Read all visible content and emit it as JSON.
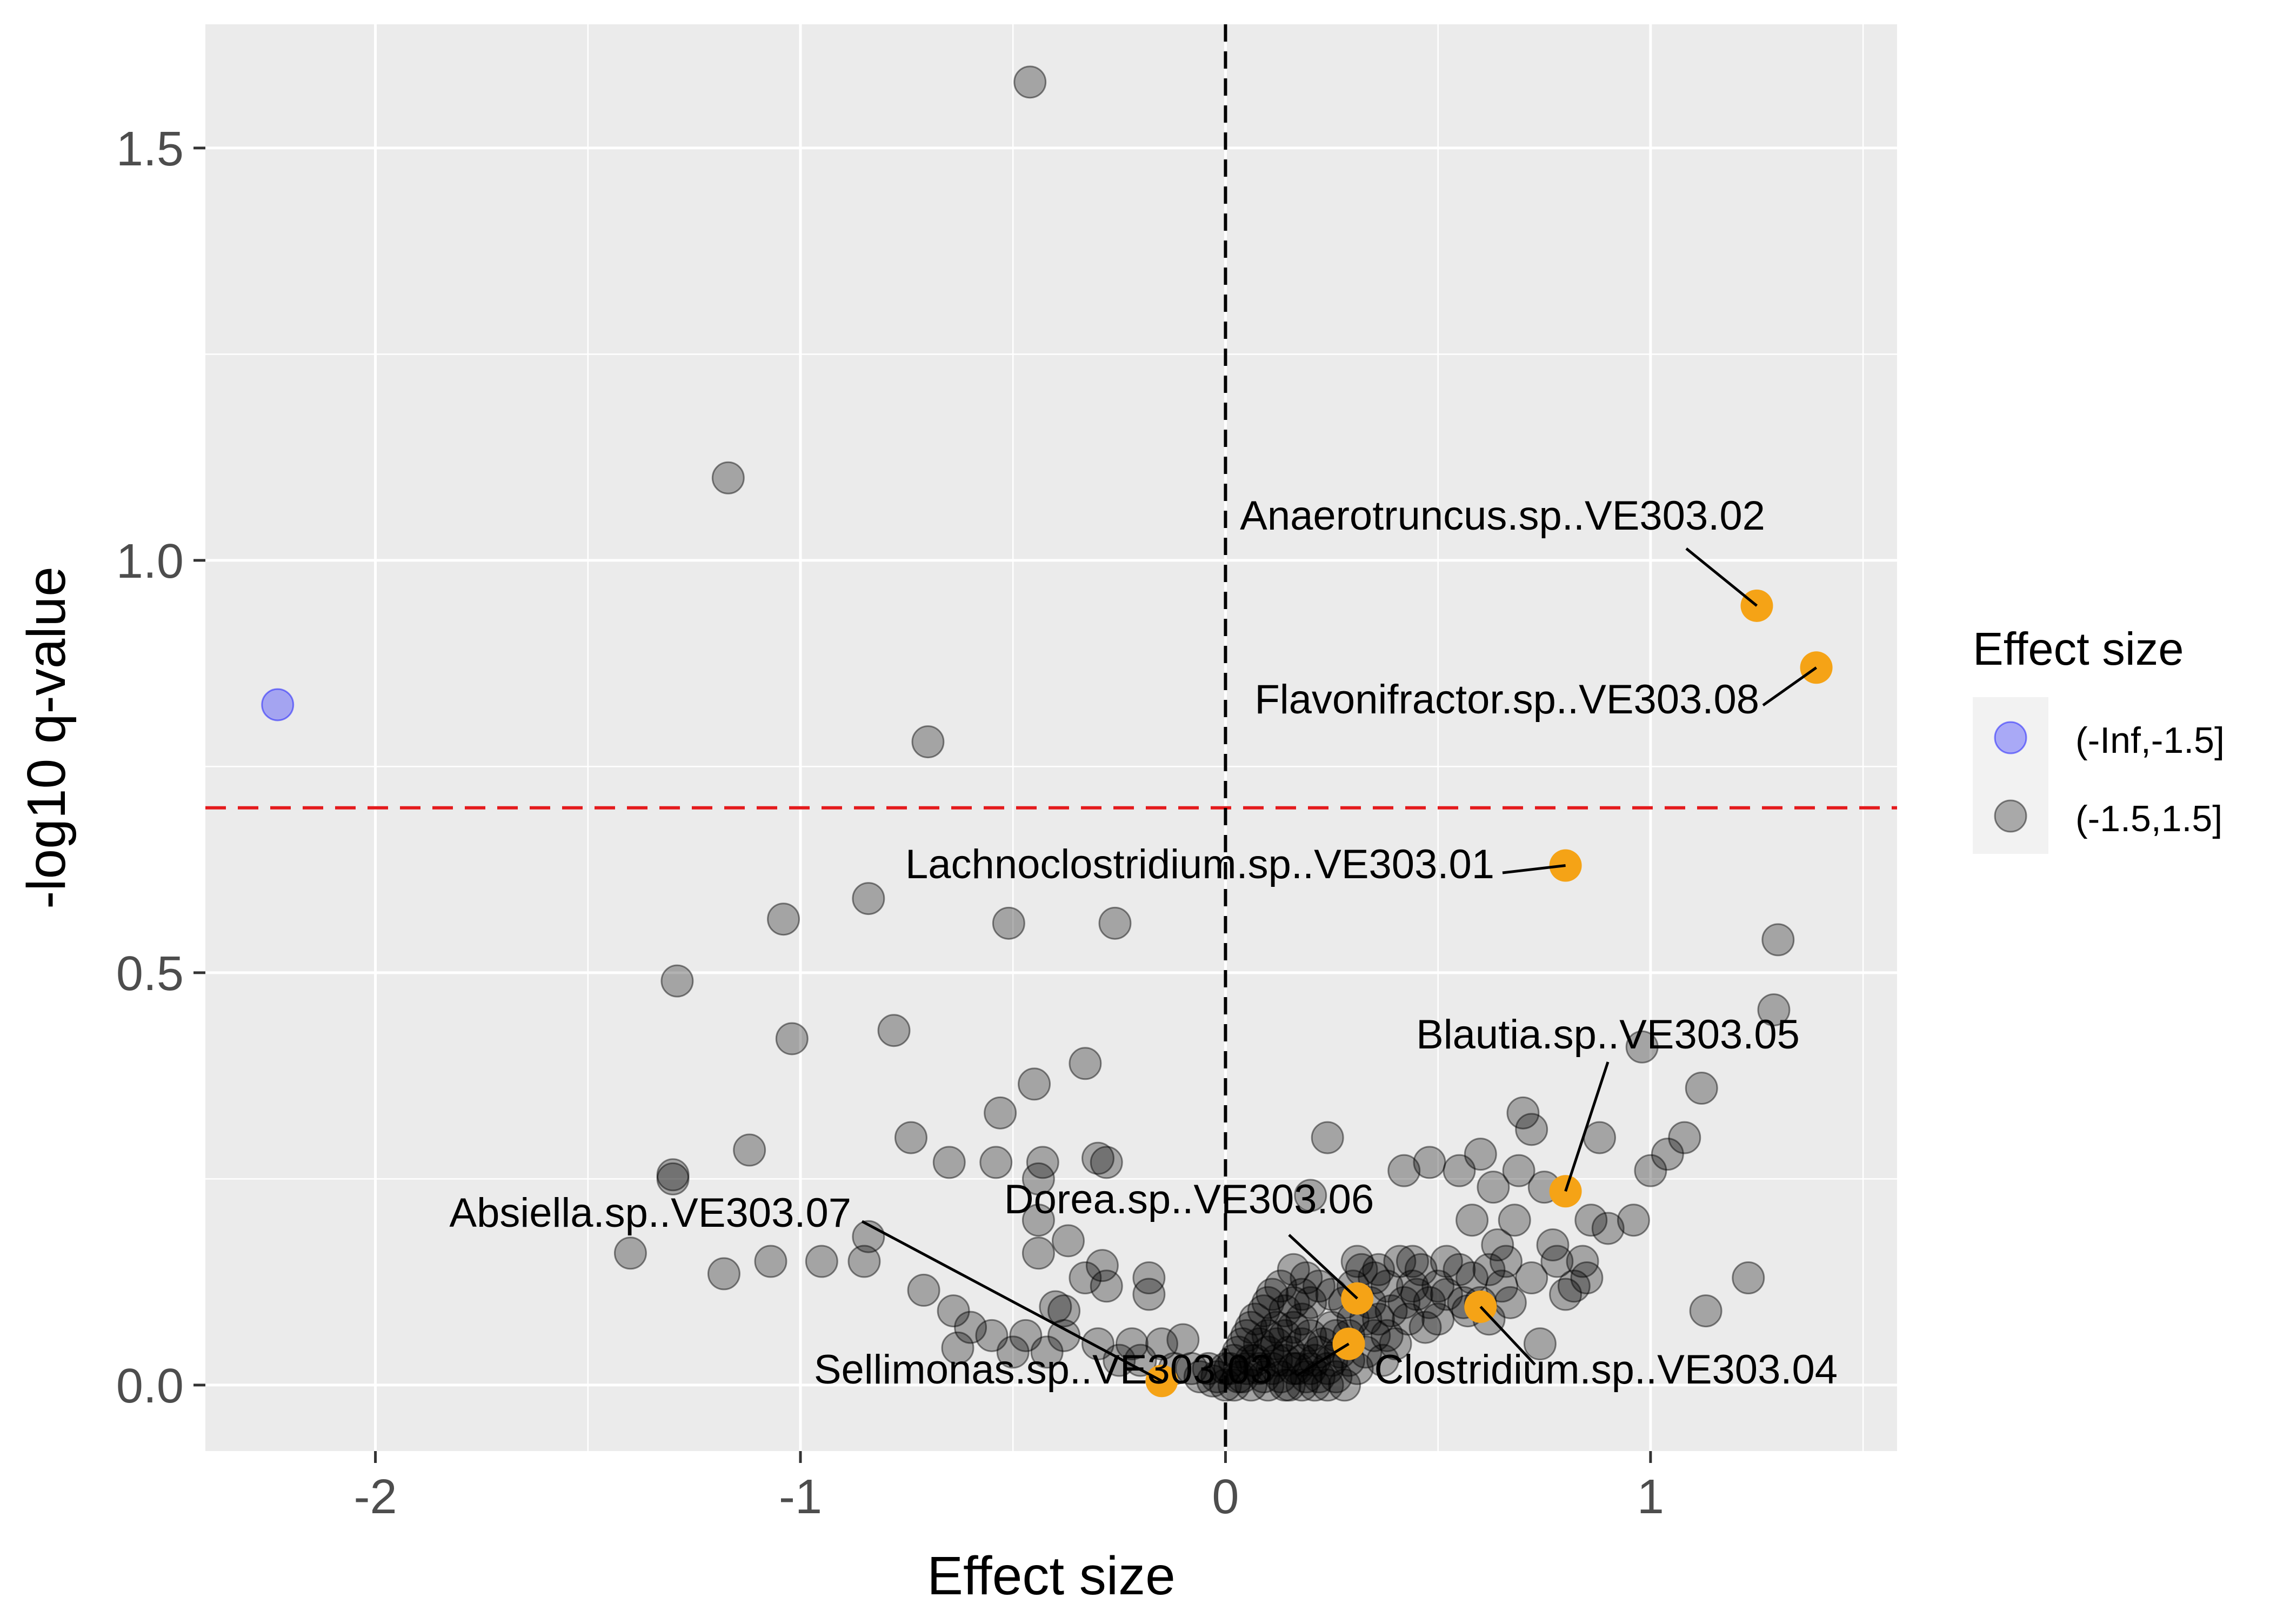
{
  "chart_data": {
    "type": "scatter",
    "title": "",
    "xlabel": "Effect size",
    "ylabel": "-log10 q-value",
    "xlim": [
      -2.4,
      1.58
    ],
    "ylim": [
      -0.08,
      1.65
    ],
    "x_ticks": [
      -2,
      -1,
      0,
      1
    ],
    "x_tick_labels": [
      "-2",
      "-1",
      "0",
      "1"
    ],
    "y_ticks": [
      0.0,
      0.5,
      1.0,
      1.5
    ],
    "y_tick_labels": [
      "0.0",
      "0.5",
      "1.0",
      "1.5"
    ],
    "grid": true,
    "background_color": "#EBEBEB",
    "grid_color": "#FFFFFF",
    "threshold_line": {
      "axis": "y",
      "value": 0.7,
      "color": "#E41A1C",
      "style": "dashed"
    },
    "zero_line": {
      "axis": "x",
      "value": 0,
      "color": "#000000",
      "style": "dashed"
    },
    "legend": {
      "title": "Effect size",
      "position": "right",
      "entries": [
        {
          "label": "(-Inf,-1.5]",
          "color": "#6B6BFF"
        },
        {
          "label": "(-1.5,1.5]",
          "color": "#7F7F7F"
        }
      ]
    },
    "series": [
      {
        "name": "(-Inf,-1.5]",
        "color": "#0000FF",
        "opacity": 0.3,
        "points": [
          [
            -2.23,
            0.825
          ]
        ]
      },
      {
        "name": "(-1.5,1.5]",
        "color": "#000000",
        "opacity": 0.3,
        "points": [
          [
            -0.46,
            1.58
          ],
          [
            -1.17,
            1.1
          ],
          [
            -0.7,
            0.78
          ],
          [
            -1.04,
            0.565
          ],
          [
            -0.84,
            0.59
          ],
          [
            -0.51,
            0.56
          ],
          [
            -0.26,
            0.56
          ],
          [
            -1.29,
            0.49
          ],
          [
            -1.02,
            0.42
          ],
          [
            -0.78,
            0.43
          ],
          [
            -0.33,
            0.39
          ],
          [
            -0.45,
            0.365
          ],
          [
            -0.53,
            0.33
          ],
          [
            -0.74,
            0.3
          ],
          [
            -1.12,
            0.285
          ],
          [
            -0.54,
            0.27
          ],
          [
            -0.65,
            0.27
          ],
          [
            -0.43,
            0.27
          ],
          [
            -0.3,
            0.275
          ],
          [
            -0.28,
            0.27
          ],
          [
            -0.44,
            0.25
          ],
          [
            -1.3,
            0.255
          ],
          [
            -1.3,
            0.25
          ],
          [
            -0.84,
            0.18
          ],
          [
            -0.44,
            0.2
          ],
          [
            -0.37,
            0.175
          ],
          [
            -0.44,
            0.16
          ],
          [
            -1.4,
            0.16
          ],
          [
            -1.07,
            0.15
          ],
          [
            -0.95,
            0.15
          ],
          [
            -0.85,
            0.15
          ],
          [
            -1.18,
            0.135
          ],
          [
            -0.71,
            0.115
          ],
          [
            -0.29,
            0.145
          ],
          [
            -0.33,
            0.13
          ],
          [
            -0.28,
            0.12
          ],
          [
            -0.18,
            0.13
          ],
          [
            -0.18,
            0.11
          ],
          [
            -0.4,
            0.095
          ],
          [
            -0.38,
            0.09
          ],
          [
            -0.64,
            0.09
          ],
          [
            -0.6,
            0.07
          ],
          [
            -0.55,
            0.06
          ],
          [
            -0.47,
            0.06
          ],
          [
            -0.38,
            0.06
          ],
          [
            -0.42,
            0.04
          ],
          [
            -0.63,
            0.045
          ],
          [
            -0.5,
            0.04
          ],
          [
            -0.3,
            0.05
          ],
          [
            -0.22,
            0.05
          ],
          [
            -0.15,
            0.05
          ],
          [
            -0.1,
            0.055
          ],
          [
            -0.2,
            0.03
          ],
          [
            -0.25,
            0.03
          ],
          [
            -0.12,
            0.02
          ],
          [
            -0.08,
            0.02
          ],
          [
            -0.06,
            0.01
          ],
          [
            -0.03,
            0.005
          ],
          [
            0.0,
            0.0
          ],
          [
            0.02,
            0.0
          ],
          [
            0.03,
            0.01
          ],
          [
            0.05,
            0.02
          ],
          [
            0.07,
            0.03
          ],
          [
            0.08,
            0.05
          ],
          [
            0.1,
            0.06
          ],
          [
            0.12,
            0.07
          ],
          [
            0.14,
            0.09
          ],
          [
            0.16,
            0.1
          ],
          [
            0.18,
            0.08
          ],
          [
            0.2,
            0.06
          ],
          [
            0.22,
            0.04
          ],
          [
            0.24,
            0.02
          ],
          [
            0.26,
            0.01
          ],
          [
            0.28,
            0.0
          ],
          [
            0.12,
            0.03
          ],
          [
            0.15,
            0.04
          ],
          [
            0.18,
            0.05
          ],
          [
            0.1,
            0.1
          ],
          [
            0.13,
            0.12
          ],
          [
            0.16,
            0.14
          ],
          [
            0.19,
            0.13
          ],
          [
            0.22,
            0.12
          ],
          [
            0.25,
            0.11
          ],
          [
            0.28,
            0.1
          ],
          [
            0.3,
            0.12
          ],
          [
            0.32,
            0.14
          ],
          [
            0.34,
            0.1
          ],
          [
            0.36,
            0.08
          ],
          [
            0.38,
            0.06
          ],
          [
            0.4,
            0.05
          ],
          [
            0.42,
            0.1
          ],
          [
            0.44,
            0.12
          ],
          [
            0.46,
            0.14
          ],
          [
            0.48,
            0.1
          ],
          [
            0.5,
            0.08
          ],
          [
            0.24,
            0.3
          ],
          [
            0.2,
            0.23
          ],
          [
            0.31,
            0.15
          ],
          [
            0.36,
            0.14
          ],
          [
            0.41,
            0.15
          ],
          [
            0.44,
            0.15
          ],
          [
            0.52,
            0.15
          ],
          [
            0.55,
            0.14
          ],
          [
            0.58,
            0.13
          ],
          [
            0.62,
            0.14
          ],
          [
            0.66,
            0.15
          ],
          [
            0.42,
            0.26
          ],
          [
            0.48,
            0.27
          ],
          [
            0.55,
            0.26
          ],
          [
            0.58,
            0.2
          ],
          [
            0.6,
            0.28
          ],
          [
            0.63,
            0.24
          ],
          [
            0.64,
            0.17
          ],
          [
            0.68,
            0.2
          ],
          [
            0.69,
            0.26
          ],
          [
            0.7,
            0.33
          ],
          [
            0.72,
            0.31
          ],
          [
            0.75,
            0.24
          ],
          [
            0.77,
            0.17
          ],
          [
            0.78,
            0.15
          ],
          [
            0.8,
            0.11
          ],
          [
            0.82,
            0.12
          ],
          [
            0.84,
            0.15
          ],
          [
            0.86,
            0.2
          ],
          [
            0.88,
            0.3
          ],
          [
            0.9,
            0.19
          ],
          [
            0.96,
            0.2
          ],
          [
            1.0,
            0.26
          ],
          [
            1.04,
            0.28
          ],
          [
            1.08,
            0.3
          ],
          [
            1.12,
            0.36
          ],
          [
            0.98,
            0.41
          ],
          [
            1.3,
            0.54
          ],
          [
            1.29,
            0.455
          ],
          [
            1.23,
            0.13
          ],
          [
            1.13,
            0.09
          ],
          [
            0.74,
            0.05
          ],
          [
            0.56,
            0.1
          ],
          [
            0.6,
            0.1
          ],
          [
            0.65,
            0.12
          ],
          [
            0.5,
            0.12
          ],
          [
            0.45,
            0.11
          ],
          [
            0.38,
            0.12
          ],
          [
            0.35,
            0.13
          ],
          [
            0.3,
            0.08
          ],
          [
            0.26,
            0.06
          ],
          [
            0.08,
            0.02
          ],
          [
            0.06,
            0.03
          ],
          [
            0.04,
            0.01
          ],
          [
            0.09,
            0.01
          ],
          [
            0.11,
            0.02
          ],
          [
            0.13,
            0.01
          ],
          [
            0.15,
            0.0
          ],
          [
            0.17,
            0.02
          ],
          [
            0.19,
            0.01
          ],
          [
            0.21,
            0.03
          ],
          [
            0.23,
            0.05
          ],
          [
            0.25,
            0.07
          ],
          [
            0.27,
            0.04
          ],
          [
            0.29,
            0.03
          ],
          [
            0.31,
            0.02
          ],
          [
            0.33,
            0.04
          ],
          [
            0.35,
            0.06
          ],
          [
            0.37,
            0.03
          ],
          [
            0.01,
            0.02
          ],
          [
            0.03,
            0.04
          ],
          [
            0.05,
            0.06
          ],
          [
            0.07,
            0.08
          ],
          [
            0.09,
            0.09
          ],
          [
            0.11,
            0.11
          ],
          [
            0.2,
            0.1
          ],
          [
            0.18,
            0.11
          ],
          [
            0.14,
            0.06
          ],
          [
            0.16,
            0.07
          ],
          [
            -0.04,
            0.02
          ],
          [
            -0.02,
            0.01
          ],
          [
            0.0,
            0.02
          ],
          [
            0.02,
            0.03
          ],
          [
            0.04,
            0.05
          ],
          [
            0.06,
            0.07
          ],
          [
            0.1,
            0.04
          ],
          [
            0.12,
            0.05
          ],
          [
            0.14,
            0.03
          ],
          [
            0.16,
            0.02
          ],
          [
            0.18,
            0.03
          ],
          [
            0.2,
            0.02
          ],
          [
            0.22,
            0.01
          ],
          [
            0.24,
            0.0
          ],
          [
            0.06,
            0.0
          ],
          [
            0.1,
            0.0
          ],
          [
            0.14,
            0.0
          ],
          [
            0.18,
            0.0
          ],
          [
            0.21,
            0.0
          ],
          [
            0.25,
            0.03
          ],
          [
            0.29,
            0.06
          ],
          [
            0.33,
            0.08
          ],
          [
            0.39,
            0.09
          ],
          [
            0.43,
            0.08
          ],
          [
            0.47,
            0.07
          ],
          [
            0.52,
            0.11
          ],
          [
            0.57,
            0.09
          ],
          [
            0.62,
            0.08
          ],
          [
            0.67,
            0.1
          ],
          [
            0.72,
            0.13
          ],
          [
            0.85,
            0.13
          ]
        ]
      },
      {
        "name": "highlighted",
        "color": "#F5A316",
        "opacity": 1,
        "points": [
          [
            1.25,
            0.945
          ],
          [
            1.39,
            0.87
          ],
          [
            0.8,
            0.63
          ],
          [
            0.8,
            0.235
          ],
          [
            0.31,
            0.105
          ],
          [
            0.6,
            0.095
          ],
          [
            0.29,
            0.05
          ],
          [
            -0.15,
            0.005
          ]
        ]
      }
    ],
    "annotations": [
      {
        "text": "Anaerotruncus.sp..VE303.02",
        "point": [
          1.25,
          0.945
        ]
      },
      {
        "text": "Flavonifractor.sp..VE303.08",
        "point": [
          1.39,
          0.87
        ]
      },
      {
        "text": "Lachnoclostridium.sp..VE303.01",
        "point": [
          0.8,
          0.63
        ]
      },
      {
        "text": "Blautia.sp..VE303.05",
        "point": [
          0.8,
          0.235
        ]
      },
      {
        "text": "Dorea.sp..VE303.06",
        "point": [
          0.31,
          0.105
        ]
      },
      {
        "text": "Absiella.sp..VE303.07",
        "point": [
          -0.15,
          0.005
        ]
      },
      {
        "text": "Clostridium.sp..VE303.04",
        "point": [
          0.6,
          0.095
        ]
      },
      {
        "text": "Sellimonas.sp..VE303.03",
        "point": [
          0.29,
          0.05
        ]
      }
    ]
  }
}
